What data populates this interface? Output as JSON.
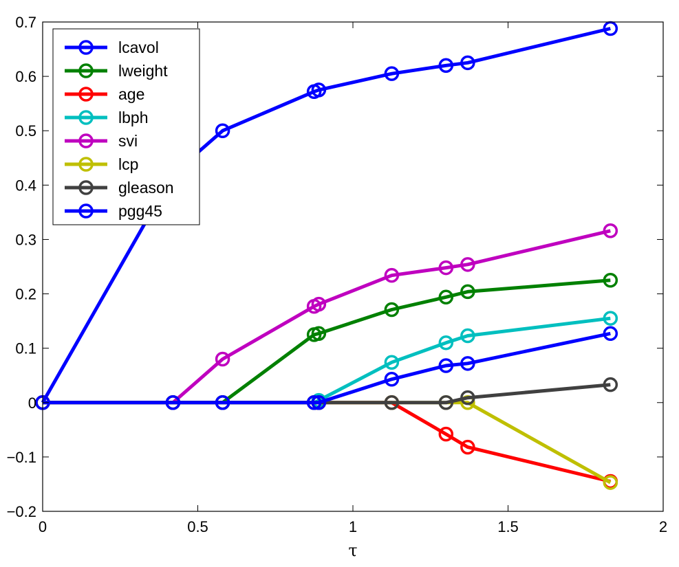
{
  "chart_data": {
    "type": "line",
    "xlabel": "τ",
    "ylabel": "",
    "title": "",
    "xlim": [
      0,
      2
    ],
    "ylim": [
      -0.2,
      0.7
    ],
    "xticks": [
      0,
      0.5,
      1,
      1.5,
      2
    ],
    "xtick_labels": [
      "0",
      "0.5",
      "1",
      "1.5",
      "2"
    ],
    "yticks": [
      -0.2,
      -0.1,
      0,
      0.1,
      0.2,
      0.3,
      0.4,
      0.5,
      0.6,
      0.7
    ],
    "ytick_labels": [
      "−0.2",
      "−0.1",
      "0",
      "0.1",
      "0.2",
      "0.3",
      "0.4",
      "0.5",
      "0.6",
      "0.7"
    ],
    "grid": false,
    "legend_position": "top-left",
    "x": [
      0,
      0.42,
      0.58,
      0.875,
      0.89,
      1.125,
      1.3,
      1.37,
      1.83
    ],
    "series": [
      {
        "name": "lcavol",
        "color": "#0000ff",
        "values": [
          0,
          0.42,
          0.5,
          0.572,
          0.575,
          0.605,
          0.62,
          0.625,
          0.688
        ]
      },
      {
        "name": "lweight",
        "color": "#008000",
        "values": [
          0,
          0,
          0,
          0.125,
          0.127,
          0.171,
          0.194,
          0.204,
          0.225
        ]
      },
      {
        "name": "age",
        "color": "#ff0000",
        "values": [
          0,
          0,
          0,
          0,
          0,
          0,
          -0.058,
          -0.082,
          -0.145
        ]
      },
      {
        "name": "lbph",
        "color": "#00bfbf",
        "values": [
          0,
          0,
          0,
          0,
          0.004,
          0.074,
          0.11,
          0.123,
          0.155
        ]
      },
      {
        "name": "svi",
        "color": "#bf00bf",
        "values": [
          0,
          0,
          0.08,
          0.177,
          0.181,
          0.234,
          0.248,
          0.254,
          0.316
        ]
      },
      {
        "name": "lcp",
        "color": "#bfbf00",
        "values": [
          0,
          0,
          0,
          0,
          0,
          0,
          0,
          0,
          -0.147
        ]
      },
      {
        "name": "gleason",
        "color": "#404040",
        "values": [
          0,
          0,
          0,
          0,
          0,
          0,
          0,
          0.009,
          0.033
        ]
      },
      {
        "name": "pgg45",
        "color": "#0000ff",
        "values": [
          0,
          0,
          0,
          0,
          0,
          0.043,
          0.068,
          0.072,
          0.127
        ]
      }
    ]
  }
}
